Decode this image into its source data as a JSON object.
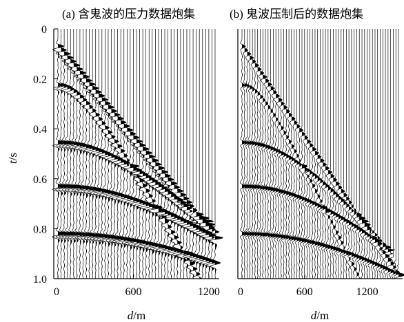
{
  "chart_data": [
    {
      "type": "seismic-wiggle",
      "title": "(a) 含鬼波的压力数据炮集",
      "xlabel_var": "d",
      "xlabel_unit": "/m",
      "ylabel_var": "t",
      "ylabel_unit": "/s",
      "xlim": [
        0,
        1250
      ],
      "ylim": [
        1.0,
        0
      ],
      "xticks": [
        "0",
        "600",
        "1200"
      ],
      "xtick_values": [
        0,
        600,
        1200
      ],
      "yticks": [
        "0",
        "0.2",
        "0.4",
        "0.6",
        "0.8",
        "1.0"
      ],
      "ytick_values": [
        0,
        0.2,
        0.4,
        0.6,
        0.8,
        1.0
      ],
      "trace_spacing_m": 25,
      "events": [
        {
          "kind": "linear",
          "t0": 0.07,
          "slowness_s_per_m": 0.00061,
          "amp": 1.0,
          "ghost_delay_s": 0.012
        },
        {
          "kind": "hyperbola",
          "t0": 0.225,
          "velocity_m_per_s": 1150,
          "amp": 0.7,
          "ghost_delay_s": 0.012
        },
        {
          "kind": "hyperbola",
          "t0": 0.455,
          "velocity_m_per_s": 1850,
          "amp": 0.9,
          "ghost_delay_s": 0.012
        },
        {
          "kind": "hyperbola",
          "t0": 0.63,
          "velocity_m_per_s": 2250,
          "amp": 1.0,
          "ghost_delay_s": 0.012
        },
        {
          "kind": "hyperbola",
          "t0": 0.82,
          "velocity_m_per_s": 2750,
          "amp": 1.0,
          "ghost_delay_s": 0.012
        }
      ],
      "ghost_present": true
    },
    {
      "type": "seismic-wiggle",
      "title": "(b) 鬼波压制后的数据炮集",
      "xlabel_var": "d",
      "xlabel_unit": "/m",
      "ylabel_var": "",
      "ylabel_unit": "",
      "xlim": [
        0,
        1500
      ],
      "ylim": [
        1.0,
        0
      ],
      "xticks": [
        "0",
        "600",
        "1200"
      ],
      "xtick_values": [
        0,
        600,
        1200
      ],
      "yticks": [],
      "ytick_values": [],
      "trace_spacing_m": 25,
      "events": [
        {
          "kind": "linear",
          "t0": 0.07,
          "slowness_s_per_m": 0.00061,
          "amp": 1.0,
          "ghost_delay_s": 0
        },
        {
          "kind": "hyperbola",
          "t0": 0.225,
          "velocity_m_per_s": 1150,
          "amp": 0.7,
          "ghost_delay_s": 0
        },
        {
          "kind": "hyperbola",
          "t0": 0.455,
          "velocity_m_per_s": 1850,
          "amp": 0.9,
          "ghost_delay_s": 0
        },
        {
          "kind": "hyperbola",
          "t0": 0.63,
          "velocity_m_per_s": 2250,
          "amp": 1.0,
          "ghost_delay_s": 0
        },
        {
          "kind": "hyperbola",
          "t0": 0.82,
          "velocity_m_per_s": 2750,
          "amp": 1.0,
          "ghost_delay_s": 0
        }
      ],
      "ghost_present": false
    }
  ]
}
